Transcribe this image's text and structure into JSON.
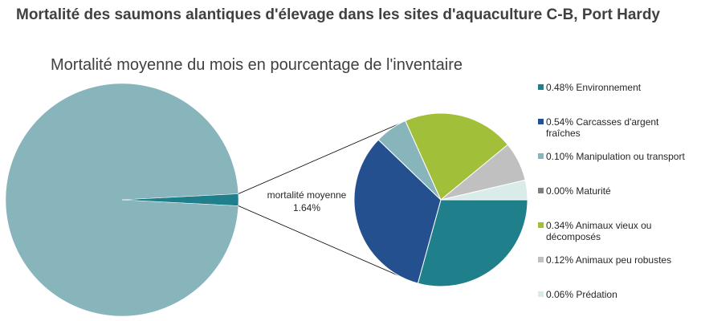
{
  "chart_data": {
    "type": "pie-of-pie",
    "title": "Mortalité des saumons alantiques d'élevage dans les sites d'aquaculture C-B, Port Hardy",
    "subtitle": "Mortalité moyenne du mois en pourcentage de l'inventaire",
    "main": {
      "categories": [
        null,
        "mortalité moyenne"
      ],
      "values": [
        98.36,
        1.64
      ],
      "value_labels": [
        null,
        "1.64%"
      ],
      "colors": [
        "#88b5bc",
        "#1f7f8a"
      ]
    },
    "detail": {
      "categories": [
        "Environnement",
        "Carcasses d'argent fraîches",
        "Manipulation ou transport",
        "Maturité",
        "Animaux vieux ou décomposés",
        "Animaux peu robustes",
        "Prédation"
      ],
      "values": [
        0.48,
        0.54,
        0.1,
        0.0,
        0.34,
        0.12,
        0.06
      ],
      "value_labels": [
        "0.48%",
        "0.54%",
        "0.10%",
        "0.00%",
        "0.34%",
        "0.12%",
        "0.06%"
      ],
      "colors": [
        "#1f7f8a",
        "#24508f",
        "#88b5bc",
        "#7f7f7f",
        "#a2bf3a",
        "#c0c0c0",
        "#d9ecea"
      ]
    }
  }
}
